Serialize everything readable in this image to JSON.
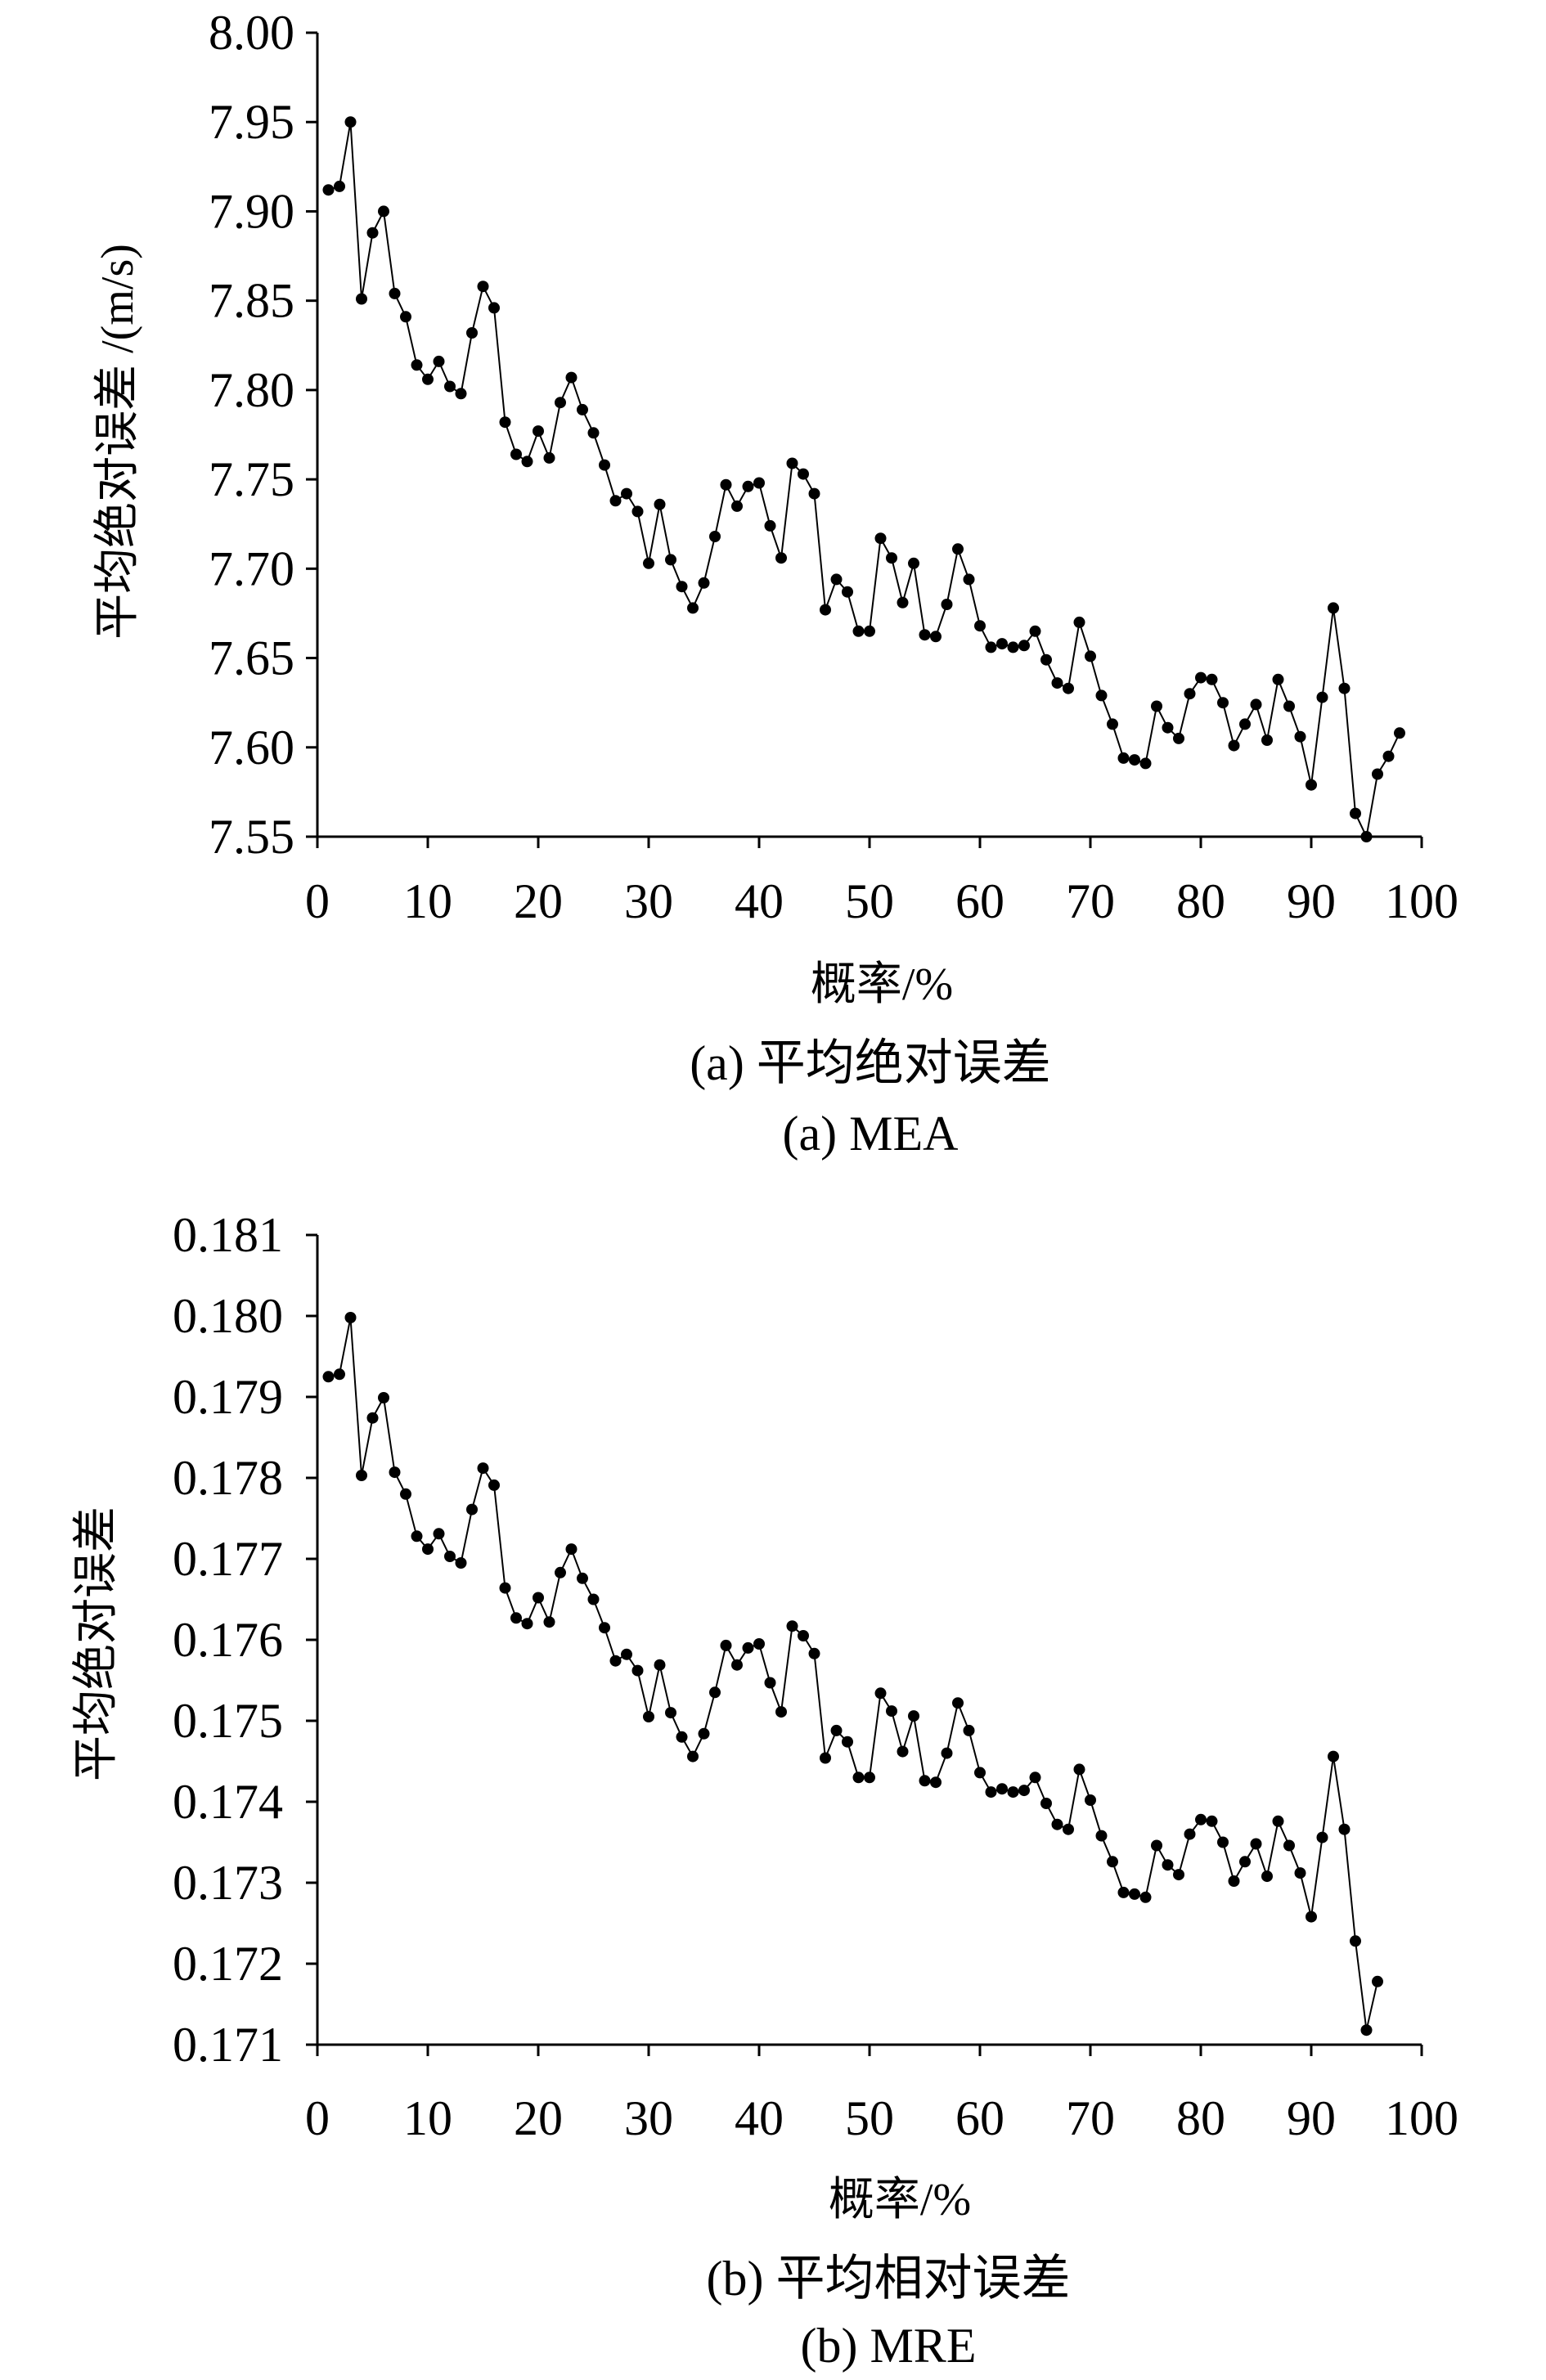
{
  "chart_data": [
    {
      "type": "line",
      "xlabel": "概率/%",
      "ylabel": "平均绝对误差 /(m/s)",
      "caption_cn": "(a) 平均绝对误差",
      "caption_en": "(a) MEA",
      "xlim": [
        0,
        100
      ],
      "ylim": [
        7.55,
        8.0
      ],
      "x_ticks": [
        "0",
        "10",
        "20",
        "30",
        "40",
        "50",
        "60",
        "70",
        "80",
        "90",
        "100"
      ],
      "y_ticks": [
        "7.55",
        "7.60",
        "7.65",
        "7.70",
        "7.75",
        "7.80",
        "7.85",
        "7.90",
        "7.95",
        "8.00"
      ],
      "grid": false,
      "series": [
        {
          "x": [
            1,
            2,
            3,
            4,
            5,
            6,
            7,
            8,
            9,
            10,
            11,
            12,
            13,
            14,
            15,
            16,
            17,
            18,
            19,
            20,
            21,
            22,
            23,
            24,
            25,
            26,
            27,
            28,
            29,
            30,
            31,
            32,
            33,
            34,
            35,
            36,
            37,
            38,
            39,
            40,
            41,
            42,
            43,
            44,
            45,
            46,
            47,
            48,
            49,
            50,
            51,
            52,
            53,
            54,
            55,
            56,
            57,
            58,
            59,
            60,
            61,
            62,
            63,
            64,
            65,
            66,
            67,
            68,
            69,
            70,
            71,
            72,
            73,
            74,
            75,
            76,
            77,
            78,
            79,
            80,
            81,
            82,
            83,
            84,
            85,
            86,
            87,
            88,
            89,
            90,
            91,
            92,
            93,
            94,
            95,
            96,
            97,
            98
          ],
          "y": [
            7.912,
            7.914,
            7.95,
            7.851,
            7.888,
            7.9,
            7.854,
            7.841,
            7.814,
            7.806,
            7.816,
            7.802,
            7.798,
            7.832,
            7.858,
            7.846,
            7.782,
            7.764,
            7.76,
            7.777,
            7.762,
            7.793,
            7.807,
            7.789,
            7.776,
            7.758,
            7.738,
            7.742,
            7.732,
            7.703,
            7.736,
            7.705,
            7.69,
            7.678,
            7.692,
            7.718,
            7.747,
            7.735,
            7.746,
            7.748,
            7.724,
            7.706,
            7.759,
            7.753,
            7.742,
            7.677,
            7.694,
            7.687,
            7.665,
            7.665,
            7.717,
            7.706,
            7.681,
            7.703,
            7.663,
            7.662,
            7.68,
            7.711,
            7.694,
            7.668,
            7.656,
            7.658,
            7.656,
            7.657,
            7.665,
            7.649,
            7.636,
            7.633,
            7.67,
            7.651,
            7.629,
            7.613,
            7.594,
            7.593,
            7.591,
            7.623,
            7.611,
            7.605,
            7.63,
            7.639,
            7.638,
            7.625,
            7.601,
            7.613,
            7.624,
            7.604,
            7.638,
            7.623,
            7.606,
            7.579,
            7.628,
            7.678,
            7.633,
            7.563,
            7.55,
            7.585,
            7.595,
            7.608
          ]
        }
      ]
    },
    {
      "type": "line",
      "xlabel": "概率/%",
      "ylabel": "平均绝对误差",
      "caption_cn": "(b) 平均相对误差",
      "caption_en": "(b) MRE",
      "xlim": [
        0,
        100
      ],
      "ylim": [
        0.171,
        0.181
      ],
      "x_ticks": [
        "0",
        "10",
        "20",
        "30",
        "40",
        "50",
        "60",
        "70",
        "80",
        "90",
        "100"
      ],
      "y_ticks": [
        "0.171",
        "0.172",
        "0.173",
        "0.174",
        "0.175",
        "0.176",
        "0.177",
        "0.178",
        "0.179",
        "0.180",
        "0.181"
      ],
      "grid": false,
      "series": [
        {
          "x": [
            1,
            2,
            3,
            4,
            5,
            6,
            7,
            8,
            9,
            10,
            11,
            12,
            13,
            14,
            15,
            16,
            17,
            18,
            19,
            20,
            21,
            22,
            23,
            24,
            25,
            26,
            27,
            28,
            29,
            30,
            31,
            32,
            33,
            34,
            35,
            36,
            37,
            38,
            39,
            40,
            41,
            42,
            43,
            44,
            45,
            46,
            47,
            48,
            49,
            50,
            51,
            52,
            53,
            54,
            55,
            56,
            57,
            58,
            59,
            60,
            61,
            62,
            63,
            64,
            65,
            66,
            67,
            68,
            69,
            70,
            71,
            72,
            73,
            74,
            75,
            76,
            77,
            78,
            79,
            80,
            81,
            82,
            83,
            84,
            85,
            86,
            87,
            88,
            89,
            90,
            91,
            92,
            93,
            94,
            95,
            96
          ],
          "y": [
            0.17925,
            0.17928,
            0.17998,
            0.17803,
            0.17874,
            0.17899,
            0.17807,
            0.1778,
            0.17728,
            0.17712,
            0.17731,
            0.17703,
            0.17695,
            0.17761,
            0.17812,
            0.17791,
            0.17664,
            0.17627,
            0.1762,
            0.17652,
            0.17622,
            0.17683,
            0.17712,
            0.17676,
            0.1765,
            0.17615,
            0.17574,
            0.17582,
            0.17562,
            0.17505,
            0.17569,
            0.1751,
            0.1748,
            0.17456,
            0.17484,
            0.17535,
            0.17593,
            0.17569,
            0.1759,
            0.17595,
            0.17547,
            0.17511,
            0.17617,
            0.17605,
            0.17583,
            0.17454,
            0.17488,
            0.17474,
            0.1743,
            0.1743,
            0.17534,
            0.17512,
            0.17462,
            0.17506,
            0.17426,
            0.17424,
            0.1746,
            0.17522,
            0.17488,
            0.17436,
            0.17412,
            0.17416,
            0.17412,
            0.17414,
            0.1743,
            0.17398,
            0.17372,
            0.17366,
            0.1744,
            0.17402,
            0.17358,
            0.17326,
            0.17288,
            0.17286,
            0.17282,
            0.17346,
            0.17322,
            0.1731,
            0.1736,
            0.17378,
            0.17376,
            0.1735,
            0.17302,
            0.17326,
            0.17348,
            0.17308,
            0.17376,
            0.17346,
            0.17312,
            0.17258,
            0.17356,
            0.17456,
            0.17366,
            0.17228,
            0.17118,
            0.17178
          ]
        }
      ]
    }
  ]
}
